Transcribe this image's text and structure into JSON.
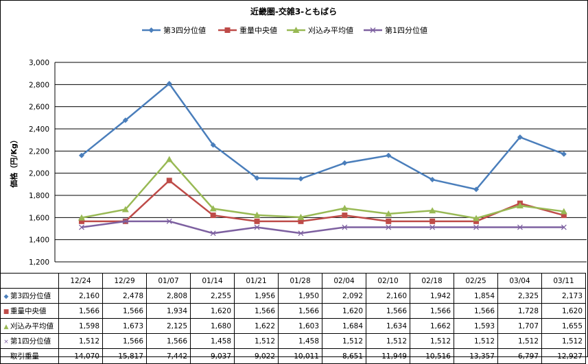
{
  "chart_data": {
    "type": "line",
    "title": "近畿圏-交雑3-ともばら",
    "ylabel": "価格（円/Kg）",
    "xlabel": "",
    "ylim": [
      1200,
      3000
    ],
    "yticks": [
      "1,200",
      "1,400",
      "1,600",
      "1,800",
      "2,000",
      "2,200",
      "2,400",
      "2,600",
      "2,800",
      "3,000"
    ],
    "ytick_values": [
      1200,
      1400,
      1600,
      1800,
      2000,
      2200,
      2400,
      2600,
      2800,
      3000
    ],
    "grid": true,
    "legend": "top",
    "categories": [
      "12/24",
      "12/29",
      "01/07",
      "01/14",
      "01/21",
      "01/28",
      "02/04",
      "02/10",
      "02/18",
      "02/25",
      "03/04",
      "03/11"
    ],
    "series": [
      {
        "name": "第3四分位値",
        "color": "#4a7ebb",
        "marker": "diamond",
        "values": [
          2160,
          2478,
          2808,
          2255,
          1956,
          1950,
          2092,
          2160,
          1942,
          1854,
          2325,
          2173
        ],
        "labels": [
          "2,160",
          "2,478",
          "2,808",
          "2,255",
          "1,956",
          "1,950",
          "2,092",
          "2,160",
          "1,942",
          "1,854",
          "2,325",
          "2,173"
        ]
      },
      {
        "name": "重量中央値",
        "color": "#be4b48",
        "marker": "square",
        "values": [
          1566,
          1566,
          1934,
          1620,
          1566,
          1566,
          1620,
          1566,
          1566,
          1566,
          1728,
          1620
        ],
        "labels": [
          "1,566",
          "1,566",
          "1,934",
          "1,620",
          "1,566",
          "1,566",
          "1,620",
          "1,566",
          "1,566",
          "1,566",
          "1,728",
          "1,620"
        ]
      },
      {
        "name": "刈込み平均値",
        "color": "#98b954",
        "marker": "triangle",
        "values": [
          1598,
          1673,
          2125,
          1680,
          1622,
          1603,
          1684,
          1634,
          1662,
          1593,
          1707,
          1655
        ],
        "labels": [
          "1,598",
          "1,673",
          "2,125",
          "1,680",
          "1,622",
          "1,603",
          "1,684",
          "1,634",
          "1,662",
          "1,593",
          "1,707",
          "1,655"
        ]
      },
      {
        "name": "第1四分位値",
        "color": "#7d60a0",
        "marker": "x",
        "values": [
          1512,
          1566,
          1566,
          1458,
          1512,
          1458,
          1512,
          1512,
          1512,
          1512,
          1512,
          1512
        ],
        "labels": [
          "1,512",
          "1,566",
          "1,566",
          "1,458",
          "1,512",
          "1,458",
          "1,512",
          "1,512",
          "1,512",
          "1,512",
          "1,512",
          "1,512"
        ]
      }
    ],
    "extra_row": {
      "name": "取引重量",
      "values": [
        14070,
        15817,
        7442,
        9037,
        9022,
        10011,
        8651,
        11949,
        10516,
        13357,
        6797,
        12927
      ],
      "labels": [
        "14,070",
        "15,817",
        "7,442",
        "9,037",
        "9,022",
        "10,011",
        "8,651",
        "11,949",
        "10,516",
        "13,357",
        "6,797",
        "12,927"
      ]
    }
  }
}
